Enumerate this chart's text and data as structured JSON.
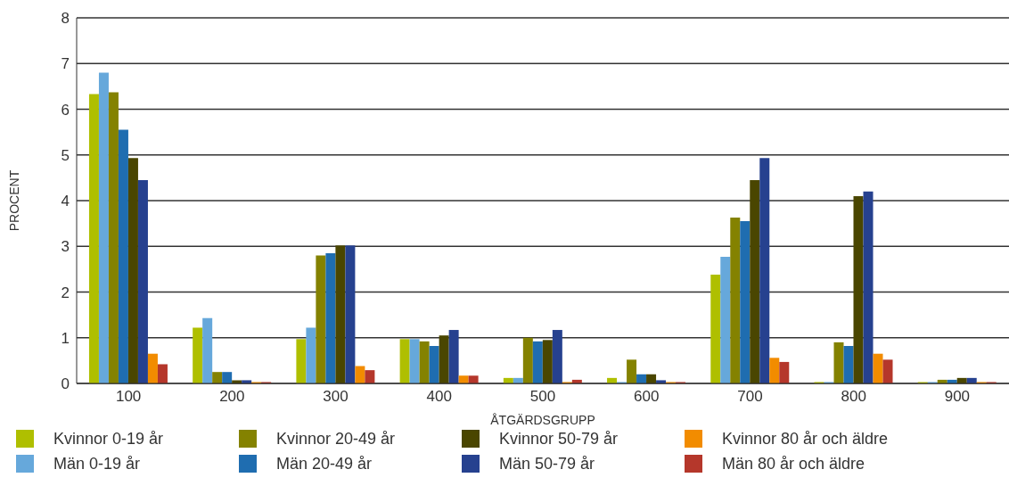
{
  "chart_data": {
    "type": "bar",
    "xlabel": "ÅTGÄRDSGRUPP",
    "ylabel": "PROCENT",
    "categories": [
      "100",
      "200",
      "300",
      "400",
      "500",
      "600",
      "700",
      "800",
      "900"
    ],
    "ylim": [
      0,
      8
    ],
    "yticks": [
      0,
      1,
      2,
      3,
      4,
      5,
      6,
      7,
      8
    ],
    "grid": "y",
    "legend": "bottom",
    "series": [
      {
        "name": "Kvinnor 0-19 år",
        "color": "#afbf00",
        "values": [
          6.33,
          1.22,
          0.97,
          0.97,
          0.12,
          0.12,
          2.38,
          0.03,
          0.03
        ]
      },
      {
        "name": "Män 0-19 år",
        "color": "#66a8db",
        "values": [
          6.8,
          1.43,
          1.22,
          0.97,
          0.12,
          0.03,
          2.77,
          0.03,
          0.03
        ]
      },
      {
        "name": "Kvinnor 20-49 år",
        "color": "#848200",
        "values": [
          6.37,
          0.25,
          2.8,
          0.92,
          1.0,
          0.52,
          3.63,
          0.9,
          0.08
        ]
      },
      {
        "name": "Män 20-49 år",
        "color": "#1f6db0",
        "values": [
          5.55,
          0.25,
          2.85,
          0.82,
          0.92,
          0.2,
          3.55,
          0.82,
          0.08
        ]
      },
      {
        "name": "Kvinnor 50-79 år",
        "color": "#4a4600",
        "values": [
          4.93,
          0.07,
          3.02,
          1.05,
          0.95,
          0.2,
          4.45,
          4.1,
          0.12
        ]
      },
      {
        "name": "Män 50-79 år",
        "color": "#26418f",
        "values": [
          4.45,
          0.07,
          3.02,
          1.17,
          1.17,
          0.07,
          4.93,
          4.2,
          0.12
        ]
      },
      {
        "name": "Kvinnor 80 år och äldre",
        "color": "#f28c00",
        "values": [
          0.65,
          0.03,
          0.38,
          0.17,
          0.03,
          0.03,
          0.56,
          0.65,
          0.03
        ]
      },
      {
        "name": "Män 80 år och äldre",
        "color": "#b5372b",
        "values": [
          0.42,
          0.03,
          0.29,
          0.17,
          0.08,
          0.03,
          0.47,
          0.52,
          0.03
        ]
      }
    ]
  }
}
